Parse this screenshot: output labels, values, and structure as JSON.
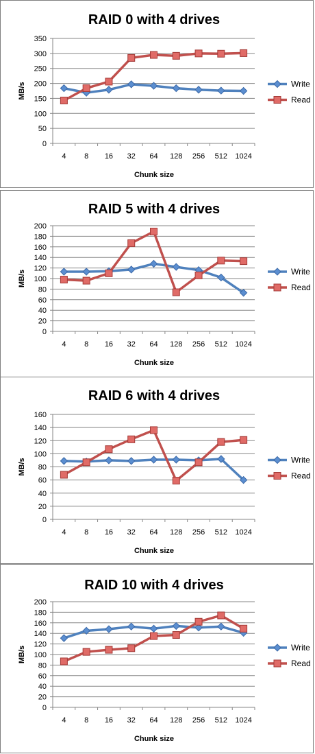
{
  "chart_data": [
    {
      "type": "line",
      "title": "RAID 0 with 4 drives",
      "xlabel": "Chunk size",
      "ylabel": "MB/s",
      "categories": [
        "4",
        "8",
        "16",
        "32",
        "64",
        "128",
        "256",
        "512",
        "1024"
      ],
      "ylim": [
        0,
        350
      ],
      "ystep": 50,
      "grid": true,
      "legend": "right",
      "series": [
        {
          "name": "Write",
          "color": "#4f81bd",
          "marker": "diamond",
          "values": [
            184,
            169,
            179,
            197,
            192,
            184,
            179,
            176,
            175
          ]
        },
        {
          "name": "Read",
          "color": "#c0504d",
          "marker": "square",
          "values": [
            143,
            184,
            206,
            285,
            295,
            292,
            300,
            299,
            301
          ]
        }
      ]
    },
    {
      "type": "line",
      "title": "RAID 5 with 4 drives",
      "xlabel": "Chunk size",
      "ylabel": "MB/s",
      "categories": [
        "4",
        "8",
        "16",
        "32",
        "64",
        "128",
        "256",
        "512",
        "1024"
      ],
      "ylim": [
        0,
        200
      ],
      "ystep": 20,
      "grid": true,
      "legend": "right",
      "series": [
        {
          "name": "Write",
          "color": "#4f81bd",
          "marker": "diamond",
          "values": [
            113,
            113,
            114,
            117,
            128,
            122,
            116,
            102,
            73
          ]
        },
        {
          "name": "Read",
          "color": "#c0504d",
          "marker": "square",
          "values": [
            98,
            96,
            110,
            167,
            189,
            74,
            106,
            134,
            133
          ]
        }
      ]
    },
    {
      "type": "line",
      "title": "RAID 6 with 4 drives",
      "xlabel": "Chunk size",
      "ylabel": "MB/s",
      "categories": [
        "4",
        "8",
        "16",
        "32",
        "64",
        "128",
        "256",
        "512",
        "1024"
      ],
      "ylim": [
        0,
        160
      ],
      "ystep": 20,
      "grid": true,
      "legend": "right",
      "series": [
        {
          "name": "Write",
          "color": "#4f81bd",
          "marker": "diamond",
          "values": [
            89,
            88,
            90,
            89,
            91,
            91,
            90,
            92,
            60
          ]
        },
        {
          "name": "Read",
          "color": "#c0504d",
          "marker": "square",
          "values": [
            68,
            87,
            107,
            122,
            136,
            59,
            87,
            118,
            121
          ]
        }
      ]
    },
    {
      "type": "line",
      "title": "RAID 10 with 4 drives",
      "xlabel": "Chunk size",
      "ylabel": "MB/s",
      "categories": [
        "4",
        "8",
        "16",
        "32",
        "64",
        "128",
        "256",
        "512",
        "1024"
      ],
      "ylim": [
        0,
        200
      ],
      "ystep": 20,
      "grid": true,
      "legend": "right",
      "series": [
        {
          "name": "Write",
          "color": "#4f81bd",
          "marker": "diamond",
          "values": [
            131,
            145,
            148,
            153,
            149,
            154,
            151,
            153,
            141
          ]
        },
        {
          "name": "Read",
          "color": "#c0504d",
          "marker": "square",
          "values": [
            87,
            105,
            109,
            112,
            135,
            137,
            162,
            174,
            149
          ]
        }
      ]
    }
  ]
}
